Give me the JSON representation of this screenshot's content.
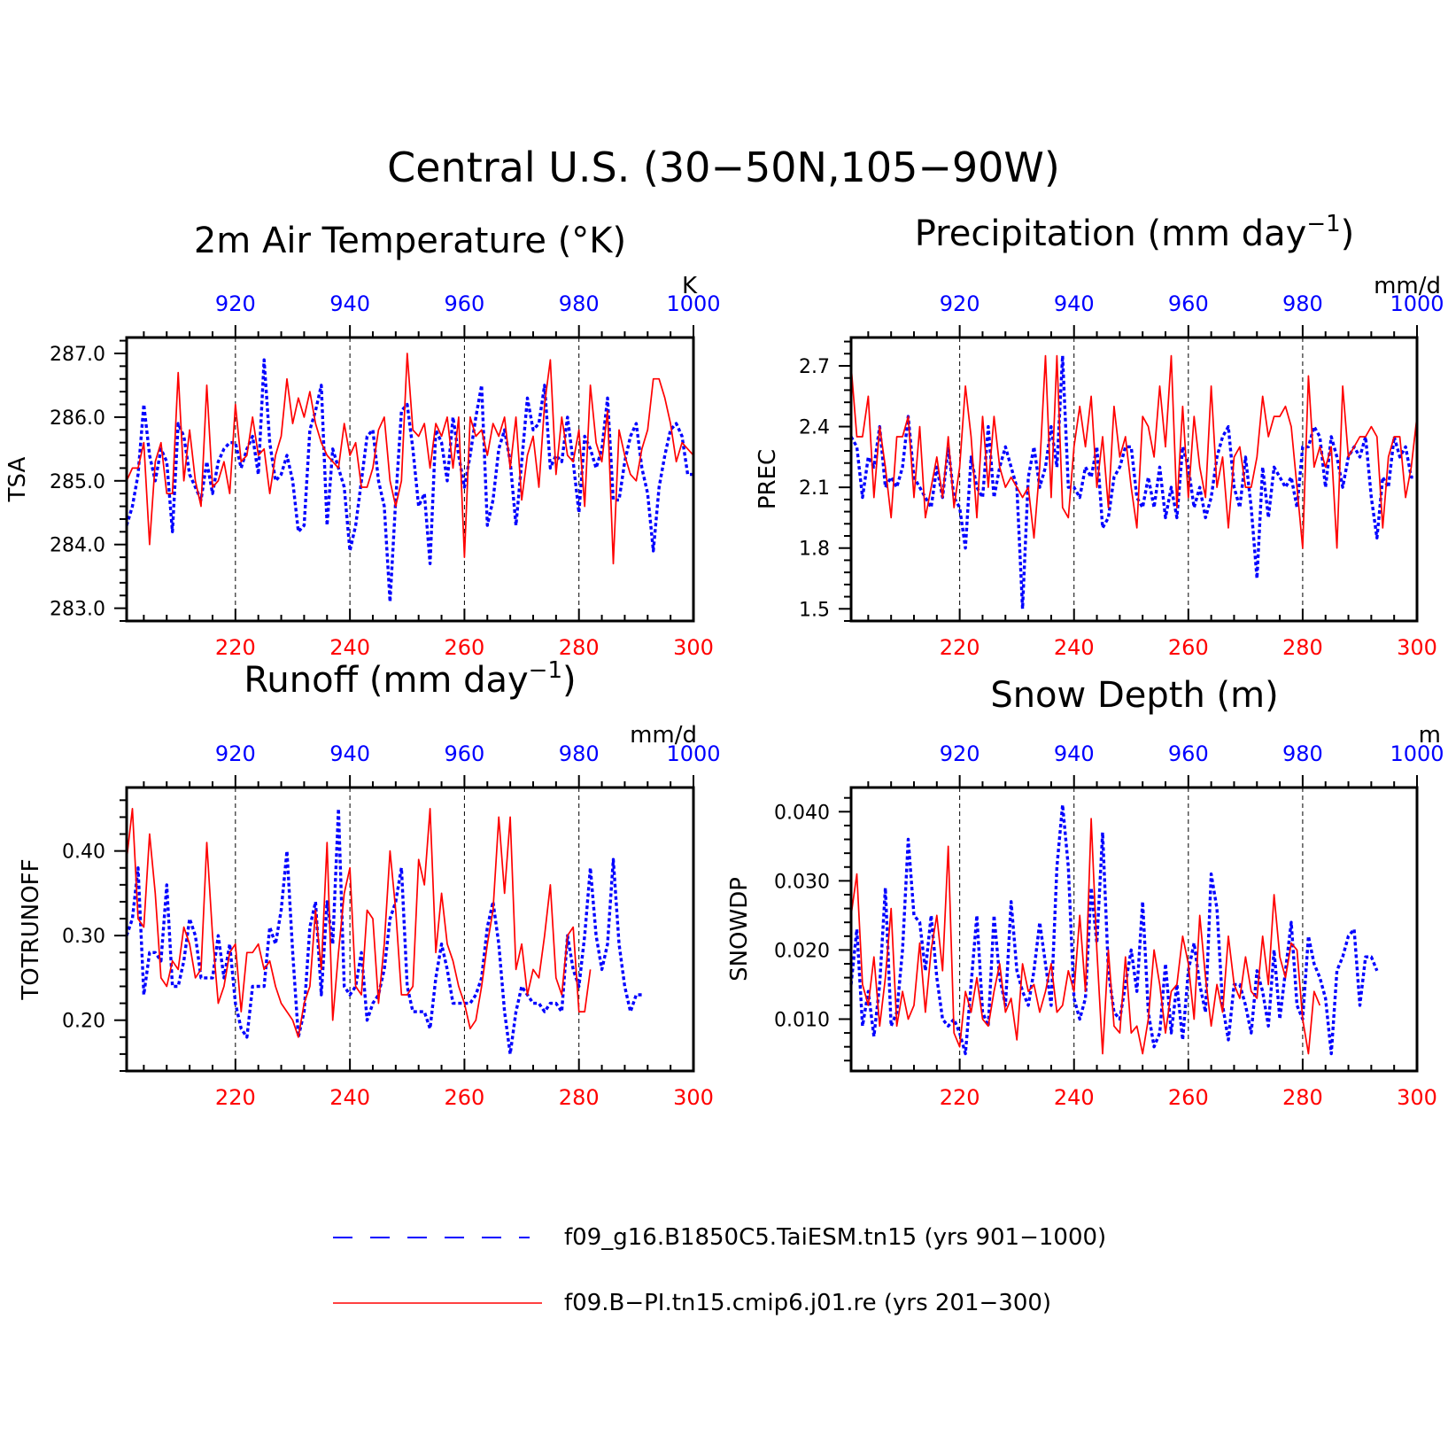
{
  "figure_title": "Central U.S. (30−50N,105−90W)",
  "colors": {
    "model_a": "#0000ff",
    "model_b": "#ff0000",
    "axis": "#000000"
  },
  "legend": {
    "entries": [
      {
        "label": "f09_g16.B1850C5.TaiESM.tn15 (yrs 901−1000)",
        "color": "#0000ff",
        "style": "dashed"
      },
      {
        "label": "f09.B−PI.tn15.cmip6.j01.re (yrs 201−300)",
        "color": "#ff0000",
        "style": "solid"
      }
    ]
  },
  "chart_data": [
    {
      "type": "line",
      "title": "2m Air Temperature (°K)",
      "ylabel": "TSA",
      "units": "K",
      "ylim": [
        282.8,
        287.25
      ],
      "yticks": [
        "287.0",
        "286.0",
        "285.0",
        "284.0",
        "283.0"
      ],
      "yticks_values": [
        287.0,
        286.0,
        285.0,
        284.0,
        283.0
      ],
      "x_bottom": {
        "lim": [
          201,
          300
        ],
        "ticks": [
          220,
          240,
          260,
          280,
          300
        ]
      },
      "x_top": {
        "lim": [
          901,
          1000
        ],
        "ticks": [
          920,
          940,
          960,
          980,
          1000
        ]
      },
      "series": [
        {
          "color": "#0000ff",
          "style": "dashed",
          "values": [
            284.3,
            284.6,
            285.1,
            286.2,
            285.4,
            285.0,
            285.5,
            285.3,
            284.2,
            285.9,
            285.7,
            285.1,
            284.9,
            284.7,
            285.3,
            284.8,
            285.3,
            285.5,
            285.6,
            285.6,
            285.2,
            285.5,
            285.7,
            285.1,
            286.9,
            285.6,
            285.0,
            285.1,
            285.4,
            285.0,
            284.2,
            284.3,
            285.8,
            286.1,
            286.5,
            284.3,
            285.5,
            285.2,
            284.9,
            283.9,
            284.3,
            285.0,
            285.7,
            285.8,
            285.0,
            284.6,
            283.1,
            284.7,
            286.1,
            286.2,
            285.5,
            284.6,
            284.8,
            283.7,
            285.8,
            285.6,
            285.0,
            286.0,
            285.4,
            284.9,
            285.4,
            286.0,
            286.5,
            284.3,
            284.7,
            285.5,
            285.8,
            285.3,
            284.3,
            285.3,
            286.3,
            285.8,
            285.9,
            286.5,
            285.2,
            285.4,
            285.3,
            286.0,
            285.3,
            284.5,
            285.7,
            285.5,
            285.2,
            285.5,
            286.3,
            284.7,
            284.7,
            285.3,
            285.7,
            285.9,
            285.2,
            284.8,
            283.9,
            284.9,
            285.4,
            285.8,
            285.9,
            285.7,
            285.1,
            285.1
          ]
        },
        {
          "color": "#ff0000",
          "style": "solid",
          "values": [
            285.0,
            285.2,
            285.2,
            285.6,
            284.0,
            285.3,
            285.6,
            284.8,
            284.8,
            286.7,
            285.0,
            285.8,
            285.0,
            284.6,
            286.5,
            284.9,
            285.0,
            285.3,
            284.8,
            286.2,
            285.3,
            285.4,
            286.0,
            285.4,
            285.5,
            284.8,
            285.4,
            285.7,
            286.6,
            285.9,
            286.3,
            286.0,
            286.4,
            285.9,
            285.6,
            285.4,
            285.3,
            285.2,
            285.9,
            285.4,
            285.6,
            284.9,
            284.9,
            285.2,
            285.8,
            286.0,
            285.0,
            284.6,
            285.0,
            287.0,
            285.8,
            285.7,
            285.9,
            285.2,
            285.9,
            285.7,
            286.0,
            285.2,
            286.0,
            283.8,
            286.0,
            285.7,
            285.8,
            285.4,
            285.9,
            285.7,
            286.0,
            285.2,
            286.0,
            284.7,
            285.4,
            285.7,
            284.9,
            286.2,
            286.9,
            285.1,
            286.0,
            285.4,
            285.3,
            285.8,
            284.6,
            286.5,
            285.6,
            285.3,
            286.1,
            283.7,
            285.8,
            285.4,
            285.1,
            285.0,
            285.5,
            285.8,
            286.6,
            286.6,
            286.3,
            285.9,
            285.3,
            285.6,
            285.5,
            285.4
          ]
        }
      ]
    },
    {
      "type": "line",
      "title": "Precipitation (mm day",
      "title_sup": "−1",
      "title_end": ")",
      "ylabel": "PREC",
      "units": "mm/d",
      "ylim": [
        1.44,
        2.84
      ],
      "yticks": [
        "2.7",
        "2.4",
        "2.1",
        "1.8",
        "1.5"
      ],
      "yticks_values": [
        2.7,
        2.4,
        2.1,
        1.8,
        1.5
      ],
      "x_bottom": {
        "lim": [
          201,
          300
        ],
        "ticks": [
          220,
          240,
          260,
          280,
          300
        ]
      },
      "x_top": {
        "lim": [
          901,
          1000
        ],
        "ticks": [
          920,
          940,
          960,
          980,
          1000
        ]
      },
      "series": [
        {
          "color": "#0000ff",
          "style": "dashed",
          "values": [
            2.35,
            2.3,
            2.05,
            2.25,
            2.2,
            2.4,
            2.1,
            2.15,
            2.1,
            2.2,
            2.45,
            2.15,
            2.1,
            2.05,
            2.0,
            2.2,
            2.05,
            2.3,
            2.05,
            2.0,
            1.8,
            2.25,
            2.1,
            2.05,
            2.4,
            2.05,
            2.2,
            2.3,
            2.2,
            2.1,
            1.5,
            2.15,
            2.3,
            2.1,
            2.2,
            2.4,
            2.2,
            2.75,
            2.1,
            2.1,
            2.05,
            2.2,
            2.15,
            2.3,
            1.9,
            1.95,
            2.15,
            2.2,
            2.3,
            2.3,
            2.05,
            2.0,
            2.15,
            2.0,
            2.2,
            1.95,
            2.1,
            1.95,
            2.3,
            2.2,
            2.0,
            2.1,
            1.95,
            2.05,
            2.25,
            2.35,
            2.4,
            2.1,
            2.0,
            2.25,
            2.0,
            1.65,
            2.2,
            1.95,
            2.2,
            2.15,
            2.1,
            2.15,
            2.0,
            2.3,
            2.3,
            2.4,
            2.35,
            2.1,
            2.35,
            2.25,
            2.1,
            2.25,
            2.3,
            2.25,
            2.35,
            2.05,
            1.85,
            2.15,
            2.1,
            2.35,
            2.25,
            2.3,
            2.15,
            2.15
          ]
        },
        {
          "color": "#ff0000",
          "style": "solid",
          "values": [
            2.7,
            2.35,
            2.35,
            2.55,
            2.05,
            2.4,
            2.2,
            1.95,
            2.35,
            2.35,
            2.45,
            2.05,
            2.4,
            1.95,
            2.1,
            2.25,
            2.05,
            2.35,
            2.0,
            2.2,
            2.6,
            2.35,
            1.95,
            2.45,
            2.1,
            2.45,
            2.2,
            2.1,
            2.15,
            2.1,
            2.05,
            2.1,
            1.85,
            2.2,
            2.75,
            2.05,
            2.75,
            2.0,
            1.95,
            2.3,
            2.5,
            2.3,
            2.55,
            2.1,
            2.35,
            2.0,
            2.5,
            2.25,
            2.35,
            2.1,
            1.9,
            2.45,
            2.4,
            2.25,
            2.6,
            2.3,
            2.75,
            2.0,
            2.5,
            2.05,
            2.45,
            2.2,
            2.05,
            2.6,
            2.1,
            2.25,
            1.9,
            2.25,
            2.3,
            2.1,
            2.1,
            2.25,
            2.55,
            2.35,
            2.45,
            2.45,
            2.5,
            2.4,
            2.1,
            1.8,
            2.65,
            2.2,
            2.3,
            2.2,
            2.3,
            1.8,
            2.6,
            2.25,
            2.3,
            2.35,
            2.35,
            2.4,
            2.35,
            1.9,
            2.25,
            2.35,
            2.35,
            2.05,
            2.2,
            2.45
          ]
        }
      ]
    },
    {
      "type": "line",
      "title": "Runoff (mm day",
      "title_sup": "−1",
      "title_end": ")",
      "ylabel": "TOTRUNOFF",
      "units": "mm/d",
      "ylim": [
        0.14,
        0.475
      ],
      "yticks": [
        "0.40",
        "0.30",
        "0.20"
      ],
      "yticks_values": [
        0.4,
        0.3,
        0.2
      ],
      "x_bottom": {
        "lim": [
          201,
          300
        ],
        "ticks": [
          220,
          240,
          260,
          280,
          300
        ]
      },
      "x_top": {
        "lim": [
          901,
          1000
        ],
        "ticks": [
          920,
          940,
          960,
          980,
          1000
        ]
      },
      "series": [
        {
          "color": "#0000ff",
          "style": "dashed",
          "values": [
            0.3,
            0.32,
            0.38,
            0.23,
            0.28,
            0.28,
            0.27,
            0.36,
            0.24,
            0.24,
            0.27,
            0.32,
            0.3,
            0.25,
            0.25,
            0.25,
            0.3,
            0.25,
            0.29,
            0.22,
            0.19,
            0.18,
            0.24,
            0.24,
            0.24,
            0.31,
            0.29,
            0.33,
            0.4,
            0.28,
            0.18,
            0.21,
            0.31,
            0.34,
            0.23,
            0.34,
            0.29,
            0.45,
            0.24,
            0.23,
            0.24,
            0.28,
            0.2,
            0.22,
            0.23,
            0.26,
            0.32,
            0.34,
            0.38,
            0.24,
            0.21,
            0.21,
            0.21,
            0.19,
            0.25,
            0.29,
            0.26,
            0.22,
            0.22,
            0.22,
            0.22,
            0.23,
            0.25,
            0.31,
            0.34,
            0.29,
            0.21,
            0.16,
            0.21,
            0.24,
            0.23,
            0.22,
            0.22,
            0.21,
            0.22,
            0.22,
            0.21,
            0.3,
            0.26,
            0.24,
            0.3,
            0.38,
            0.3,
            0.26,
            0.29,
            0.39,
            0.29,
            0.24,
            0.21,
            0.23,
            0.23
          ]
        },
        {
          "color": "#ff0000",
          "style": "solid",
          "values": [
            0.39,
            0.45,
            0.32,
            0.31,
            0.42,
            0.35,
            0.25,
            0.24,
            0.27,
            0.26,
            0.31,
            0.29,
            0.25,
            0.26,
            0.41,
            0.3,
            0.22,
            0.24,
            0.28,
            0.29,
            0.21,
            0.28,
            0.28,
            0.29,
            0.26,
            0.27,
            0.24,
            0.22,
            0.21,
            0.2,
            0.18,
            0.22,
            0.24,
            0.33,
            0.26,
            0.41,
            0.2,
            0.28,
            0.35,
            0.38,
            0.24,
            0.23,
            0.33,
            0.32,
            0.22,
            0.29,
            0.4,
            0.33,
            0.23,
            0.23,
            0.24,
            0.39,
            0.36,
            0.45,
            0.28,
            0.35,
            0.29,
            0.27,
            0.24,
            0.22,
            0.19,
            0.2,
            0.24,
            0.29,
            0.33,
            0.44,
            0.35,
            0.44,
            0.26,
            0.29,
            0.23,
            0.26,
            0.25,
            0.3,
            0.36,
            0.25,
            0.23,
            0.3,
            0.31,
            0.21,
            0.21,
            0.26
          ]
        }
      ]
    },
    {
      "type": "line",
      "title": "Snow Depth (m)",
      "ylabel": "SNOWDP",
      "units": "m",
      "ylim": [
        0.0025,
        0.0435
      ],
      "yticks": [
        "0.040",
        "0.030",
        "0.020",
        "0.010"
      ],
      "yticks_values": [
        0.04,
        0.03,
        0.02,
        0.01
      ],
      "x_bottom": {
        "lim": [
          201,
          300
        ],
        "ticks": [
          220,
          240,
          260,
          280,
          300
        ]
      },
      "x_top": {
        "lim": [
          901,
          1000
        ],
        "ticks": [
          920,
          940,
          960,
          980,
          1000
        ]
      },
      "series": [
        {
          "color": "#0000ff",
          "style": "dashed",
          "values": [
            0.015,
            0.023,
            0.009,
            0.014,
            0.0075,
            0.015,
            0.029,
            0.009,
            0.011,
            0.02,
            0.036,
            0.025,
            0.024,
            0.017,
            0.025,
            0.016,
            0.01,
            0.009,
            0.01,
            0.008,
            0.005,
            0.015,
            0.025,
            0.011,
            0.009,
            0.025,
            0.016,
            0.012,
            0.027,
            0.017,
            0.014,
            0.012,
            0.017,
            0.024,
            0.018,
            0.012,
            0.032,
            0.041,
            0.032,
            0.013,
            0.01,
            0.013,
            0.029,
            0.021,
            0.037,
            0.017,
            0.011,
            0.01,
            0.015,
            0.02,
            0.014,
            0.027,
            0.011,
            0.006,
            0.008,
            0.018,
            0.008,
            0.015,
            0.007,
            0.017,
            0.021,
            0.015,
            0.011,
            0.031,
            0.026,
            0.012,
            0.007,
            0.015,
            0.015,
            0.012,
            0.008,
            0.017,
            0.014,
            0.009,
            0.02,
            0.01,
            0.017,
            0.024,
            0.012,
            0.01,
            0.022,
            0.018,
            0.016,
            0.013,
            0.005,
            0.017,
            0.019,
            0.022,
            0.023,
            0.012,
            0.019,
            0.019,
            0.017
          ]
        },
        {
          "color": "#ff0000",
          "style": "solid",
          "values": [
            0.025,
            0.031,
            0.015,
            0.012,
            0.019,
            0.009,
            0.016,
            0.026,
            0.009,
            0.014,
            0.01,
            0.012,
            0.021,
            0.011,
            0.02,
            0.025,
            0.017,
            0.035,
            0.008,
            0.006,
            0.014,
            0.011,
            0.016,
            0.01,
            0.009,
            0.014,
            0.018,
            0.011,
            0.013,
            0.007,
            0.018,
            0.014,
            0.015,
            0.011,
            0.014,
            0.018,
            0.011,
            0.012,
            0.017,
            0.014,
            0.025,
            0.014,
            0.039,
            0.02,
            0.005,
            0.02,
            0.009,
            0.008,
            0.019,
            0.008,
            0.009,
            0.005,
            0.01,
            0.02,
            0.015,
            0.008,
            0.014,
            0.015,
            0.022,
            0.018,
            0.01,
            0.025,
            0.016,
            0.009,
            0.015,
            0.011,
            0.022,
            0.015,
            0.013,
            0.019,
            0.014,
            0.013,
            0.022,
            0.015,
            0.028,
            0.019,
            0.016,
            0.021,
            0.02,
            0.01,
            0.005,
            0.014,
            0.012
          ]
        }
      ]
    }
  ]
}
